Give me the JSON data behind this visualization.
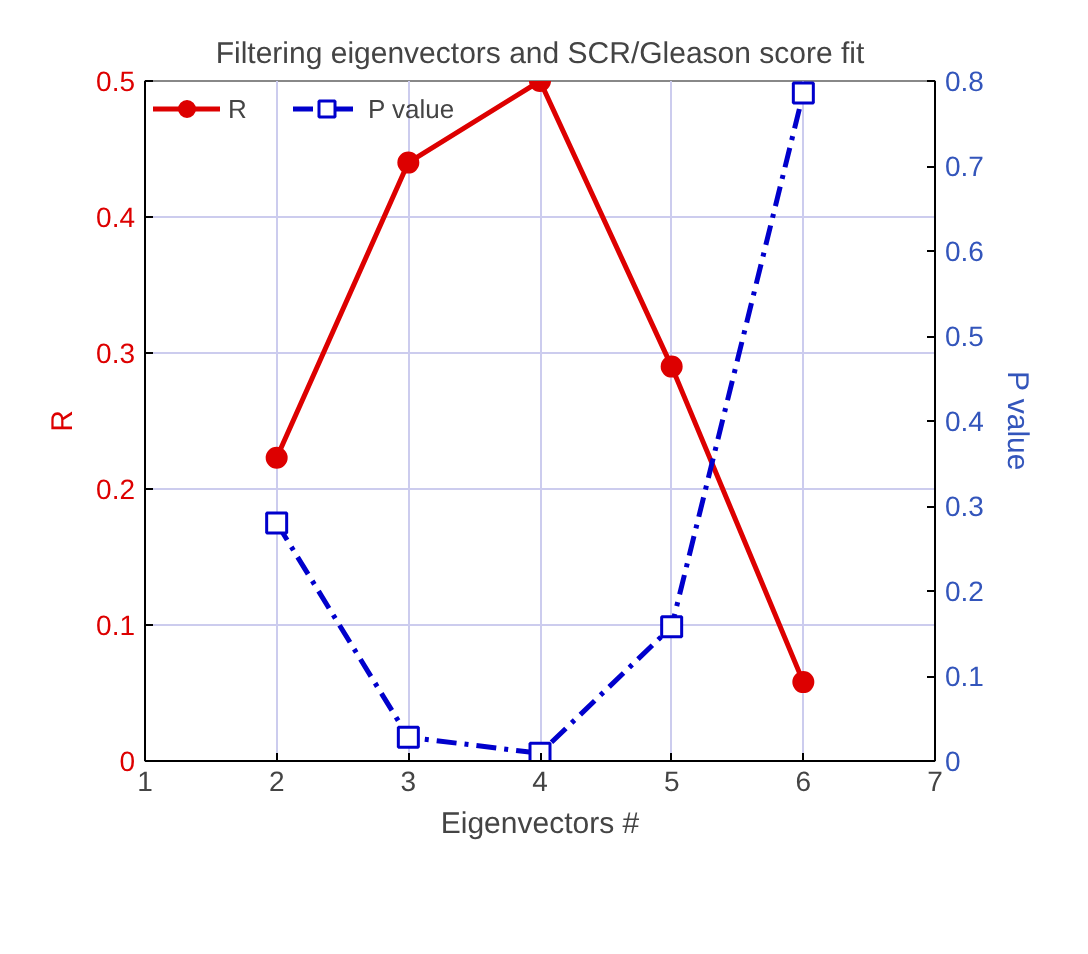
{
  "chart_data": {
    "type": "line",
    "title": "Filtering eigenvectors and SCR/Gleason score fit",
    "xlabel": "Eigenvectors #",
    "ylabel": "R",
    "y2label": "P value",
    "x": [
      2,
      3,
      4,
      5,
      6
    ],
    "series": [
      {
        "name": "R",
        "color": "#dd0000",
        "values": [
          0.223,
          0.44,
          0.5,
          0.29,
          0.058
        ],
        "marker": "circle",
        "line_style": "solid"
      },
      {
        "name": "P value",
        "color": "#0000cc",
        "values": [
          0.28,
          0.028,
          0.009,
          0.158,
          0.786
        ],
        "axis": "y2",
        "marker": "square",
        "line_style": "dashed"
      }
    ],
    "xlim": [
      1,
      7
    ],
    "xticks": [
      1,
      2,
      3,
      4,
      5,
      6,
      7
    ],
    "ylim": [
      0,
      0.5
    ],
    "yticks": [
      0,
      0.1,
      0.2,
      0.3,
      0.4,
      0.5
    ],
    "y2lim": [
      0,
      0.8
    ],
    "y2ticks": [
      0,
      0.1,
      0.2,
      0.3,
      0.4,
      0.5,
      0.6,
      0.7,
      0.8
    ],
    "grid": true,
    "legend": "top left"
  }
}
